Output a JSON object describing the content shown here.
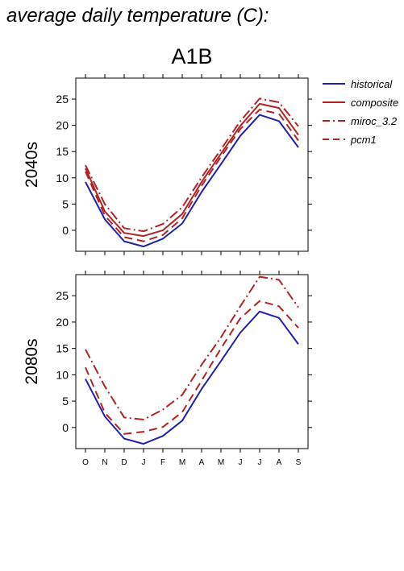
{
  "title": "average daily temperature (C):",
  "scenario": "A1B",
  "colors": {
    "historical": "#2020b0",
    "projection": "#b22222"
  },
  "chart_data": {
    "type": "line",
    "x": [
      "O",
      "N",
      "D",
      "J",
      "F",
      "M",
      "A",
      "M",
      "J",
      "J",
      "A",
      "S"
    ],
    "ylim": [
      -4,
      29
    ],
    "yticks": [
      0,
      5,
      10,
      15,
      20,
      25
    ],
    "legend": {
      "position": "top-right",
      "entries": [
        {
          "name": "historical",
          "style": "solid",
          "color": "#2020b0"
        },
        {
          "name": "composite",
          "style": "solid",
          "color": "#b22222"
        },
        {
          "name": "miroc_3.2",
          "style": "dashdot",
          "color": "#b22222"
        },
        {
          "name": "pcm1",
          "style": "dashed",
          "color": "#b22222"
        }
      ]
    },
    "panels": [
      {
        "label": "2040s",
        "series": [
          {
            "name": "historical",
            "values": [
              9.2,
              2.1,
              -2.1,
              -3.1,
              -1.6,
              1.3,
              7.3,
              12.6,
              18.0,
              22.0,
              20.8,
              15.8
            ]
          },
          {
            "name": "composite",
            "values": [
              11.8,
              3.6,
              -0.5,
              -1.1,
              0.0,
              3.1,
              9.2,
              14.6,
              19.9,
              24.1,
              23.3,
              18.2
            ]
          },
          {
            "name": "miroc_3.2",
            "values": [
              12.4,
              5.0,
              0.4,
              -0.2,
              1.2,
              4.4,
              10.1,
              15.4,
              20.8,
              25.1,
              24.4,
              19.8
            ]
          },
          {
            "name": "pcm1",
            "values": [
              11.2,
              2.8,
              -1.3,
              -2.1,
              -0.9,
              2.3,
              8.5,
              14.0,
              19.3,
              23.0,
              22.2,
              17.1
            ]
          }
        ]
      },
      {
        "label": "2080s",
        "series": [
          {
            "name": "historical",
            "values": [
              9.2,
              2.1,
              -2.1,
              -3.1,
              -1.6,
              1.3,
              7.3,
              12.6,
              18.0,
              22.0,
              20.8,
              15.8
            ]
          },
          {
            "name": "miroc_3.2",
            "values": [
              14.8,
              7.8,
              1.9,
              1.5,
              3.4,
              6.2,
              11.9,
              17.1,
              23.0,
              28.6,
              28.0,
              22.8
            ]
          },
          {
            "name": "pcm1",
            "values": [
              11.4,
              2.8,
              -1.2,
              -0.8,
              0.1,
              2.9,
              8.9,
              15.0,
              20.7,
              24.0,
              23.0,
              18.9
            ]
          }
        ]
      }
    ]
  }
}
